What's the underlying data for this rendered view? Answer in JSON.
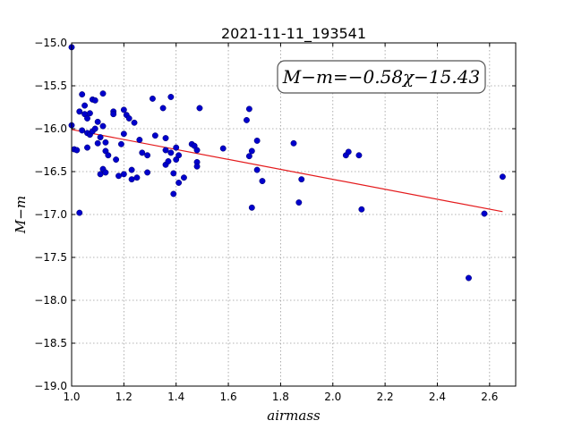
{
  "chart_data": {
    "type": "scatter",
    "title": "2021-11-11_193541",
    "xlabel": "airmass",
    "ylabel": "M−m",
    "xlim": [
      1.0,
      2.7
    ],
    "ylim": [
      -19.0,
      -15.0
    ],
    "xticks": [
      "1.0",
      "1.2",
      "1.4",
      "1.6",
      "1.8",
      "2.0",
      "2.2",
      "2.4",
      "2.6"
    ],
    "yticks": [
      "−15.0",
      "−15.5",
      "−16.0",
      "−16.5",
      "−17.0",
      "−17.5",
      "−18.0",
      "−18.5",
      "−19.0"
    ],
    "grid": true,
    "annotation": "M−m=−0.58χ−15.43",
    "fit": {
      "slope": -0.58,
      "intercept": -15.43,
      "x_range": [
        1.0,
        2.65
      ],
      "color": "#e41a1c"
    },
    "marker_color": "#0000cc",
    "points": [
      {
        "x": 1.0,
        "y": -15.05
      },
      {
        "x": 1.0,
        "y": -15.96
      },
      {
        "x": 1.01,
        "y": -16.24
      },
      {
        "x": 1.02,
        "y": -16.25
      },
      {
        "x": 1.03,
        "y": -16.98
      },
      {
        "x": 1.03,
        "y": -15.8
      },
      {
        "x": 1.04,
        "y": -15.6
      },
      {
        "x": 1.04,
        "y": -16.02
      },
      {
        "x": 1.05,
        "y": -15.73
      },
      {
        "x": 1.05,
        "y": -15.83
      },
      {
        "x": 1.06,
        "y": -15.88
      },
      {
        "x": 1.06,
        "y": -16.22
      },
      {
        "x": 1.06,
        "y": -16.05
      },
      {
        "x": 1.07,
        "y": -15.82
      },
      {
        "x": 1.07,
        "y": -16.07
      },
      {
        "x": 1.08,
        "y": -15.66
      },
      {
        "x": 1.08,
        "y": -16.03
      },
      {
        "x": 1.09,
        "y": -15.67
      },
      {
        "x": 1.09,
        "y": -16.0
      },
      {
        "x": 1.1,
        "y": -15.92
      },
      {
        "x": 1.1,
        "y": -16.17
      },
      {
        "x": 1.11,
        "y": -16.1
      },
      {
        "x": 1.11,
        "y": -16.53
      },
      {
        "x": 1.12,
        "y": -15.97
      },
      {
        "x": 1.12,
        "y": -15.59
      },
      {
        "x": 1.12,
        "y": -16.47
      },
      {
        "x": 1.13,
        "y": -16.51
      },
      {
        "x": 1.13,
        "y": -16.26
      },
      {
        "x": 1.13,
        "y": -16.16
      },
      {
        "x": 1.14,
        "y": -16.31
      },
      {
        "x": 1.16,
        "y": -15.8
      },
      {
        "x": 1.16,
        "y": -15.83
      },
      {
        "x": 1.17,
        "y": -16.36
      },
      {
        "x": 1.18,
        "y": -16.55
      },
      {
        "x": 1.19,
        "y": -16.18
      },
      {
        "x": 1.2,
        "y": -16.06
      },
      {
        "x": 1.2,
        "y": -16.53
      },
      {
        "x": 1.2,
        "y": -15.78
      },
      {
        "x": 1.21,
        "y": -15.84
      },
      {
        "x": 1.22,
        "y": -15.88
      },
      {
        "x": 1.23,
        "y": -16.48
      },
      {
        "x": 1.23,
        "y": -16.59
      },
      {
        "x": 1.24,
        "y": -15.93
      },
      {
        "x": 1.25,
        "y": -16.57
      },
      {
        "x": 1.26,
        "y": -16.13
      },
      {
        "x": 1.27,
        "y": -16.28
      },
      {
        "x": 1.29,
        "y": -16.51
      },
      {
        "x": 1.29,
        "y": -16.31
      },
      {
        "x": 1.31,
        "y": -15.65
      },
      {
        "x": 1.32,
        "y": -16.08
      },
      {
        "x": 1.35,
        "y": -15.76
      },
      {
        "x": 1.36,
        "y": -16.11
      },
      {
        "x": 1.36,
        "y": -16.25
      },
      {
        "x": 1.36,
        "y": -16.42
      },
      {
        "x": 1.37,
        "y": -16.38
      },
      {
        "x": 1.38,
        "y": -15.63
      },
      {
        "x": 1.38,
        "y": -16.28
      },
      {
        "x": 1.39,
        "y": -16.52
      },
      {
        "x": 1.39,
        "y": -16.76
      },
      {
        "x": 1.4,
        "y": -16.36
      },
      {
        "x": 1.4,
        "y": -16.22
      },
      {
        "x": 1.41,
        "y": -16.63
      },
      {
        "x": 1.41,
        "y": -16.31
      },
      {
        "x": 1.43,
        "y": -16.57
      },
      {
        "x": 1.46,
        "y": -16.18
      },
      {
        "x": 1.47,
        "y": -16.2
      },
      {
        "x": 1.48,
        "y": -16.39
      },
      {
        "x": 1.48,
        "y": -16.44
      },
      {
        "x": 1.48,
        "y": -16.25
      },
      {
        "x": 1.49,
        "y": -15.76
      },
      {
        "x": 1.58,
        "y": -16.23
      },
      {
        "x": 1.67,
        "y": -15.9
      },
      {
        "x": 1.68,
        "y": -16.32
      },
      {
        "x": 1.68,
        "y": -15.77
      },
      {
        "x": 1.69,
        "y": -16.26
      },
      {
        "x": 1.69,
        "y": -16.92
      },
      {
        "x": 1.71,
        "y": -16.14
      },
      {
        "x": 1.71,
        "y": -16.48
      },
      {
        "x": 1.73,
        "y": -16.61
      },
      {
        "x": 1.85,
        "y": -16.17
      },
      {
        "x": 1.87,
        "y": -16.86
      },
      {
        "x": 1.88,
        "y": -16.59
      },
      {
        "x": 2.05,
        "y": -16.31
      },
      {
        "x": 2.06,
        "y": -16.27
      },
      {
        "x": 2.1,
        "y": -16.31
      },
      {
        "x": 2.11,
        "y": -16.94
      },
      {
        "x": 2.52,
        "y": -17.74
      },
      {
        "x": 2.58,
        "y": -16.99
      },
      {
        "x": 2.65,
        "y": -16.56
      }
    ]
  }
}
